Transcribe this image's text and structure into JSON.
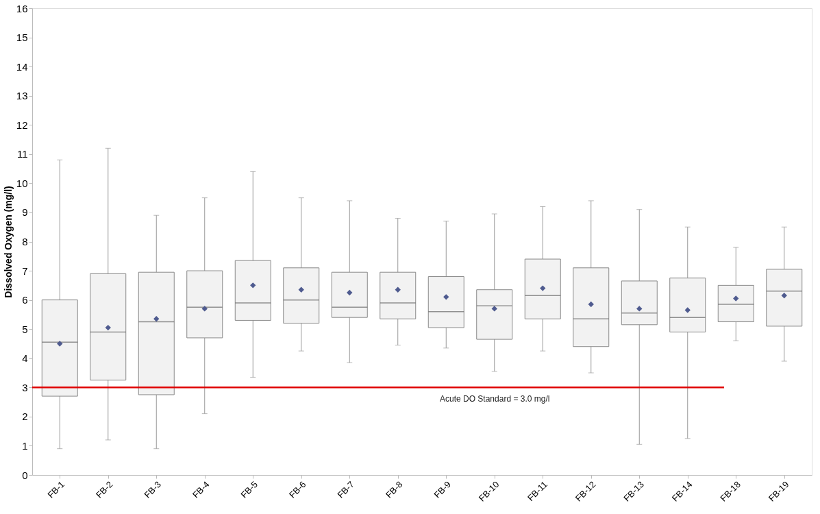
{
  "chart_data": {
    "type": "box",
    "ylabel": "Dissolved Oxygen (mg/l)",
    "categories": [
      "FB-1",
      "FB-2",
      "FB-3",
      "FB-4",
      "FB-5",
      "FB-6",
      "FB-7",
      "FB-8",
      "FB-9",
      "FB-10",
      "FB-11",
      "FB-12",
      "FB-13",
      "FB-14",
      "FB-18",
      "FB-19"
    ],
    "boxes": [
      {
        "low": 0.9,
        "q1": 2.7,
        "median": 4.55,
        "q3": 6.0,
        "high": 10.8,
        "mean": 4.5
      },
      {
        "low": 1.2,
        "q1": 3.25,
        "median": 4.9,
        "q3": 6.9,
        "high": 11.2,
        "mean": 5.05
      },
      {
        "low": 0.9,
        "q1": 2.75,
        "median": 5.25,
        "q3": 6.95,
        "high": 8.9,
        "mean": 5.35
      },
      {
        "low": 2.1,
        "q1": 4.7,
        "median": 5.75,
        "q3": 7.0,
        "high": 9.5,
        "mean": 5.7
      },
      {
        "low": 3.35,
        "q1": 5.3,
        "median": 5.9,
        "q3": 7.35,
        "high": 10.4,
        "mean": 6.5
      },
      {
        "low": 4.25,
        "q1": 5.2,
        "median": 6.0,
        "q3": 7.1,
        "high": 9.5,
        "mean": 6.35
      },
      {
        "low": 3.85,
        "q1": 5.4,
        "median": 5.75,
        "q3": 6.95,
        "high": 9.4,
        "mean": 6.25
      },
      {
        "low": 4.45,
        "q1": 5.35,
        "median": 5.9,
        "q3": 6.95,
        "high": 8.8,
        "mean": 6.35
      },
      {
        "low": 4.35,
        "q1": 5.05,
        "median": 5.6,
        "q3": 6.8,
        "high": 8.7,
        "mean": 6.1
      },
      {
        "low": 3.55,
        "q1": 4.65,
        "median": 5.8,
        "q3": 6.35,
        "high": 8.95,
        "mean": 5.7
      },
      {
        "low": 4.25,
        "q1": 5.35,
        "median": 6.15,
        "q3": 7.4,
        "high": 9.2,
        "mean": 6.4
      },
      {
        "low": 3.5,
        "q1": 4.4,
        "median": 5.35,
        "q3": 7.1,
        "high": 9.4,
        "mean": 5.85
      },
      {
        "low": 1.05,
        "q1": 5.15,
        "median": 5.55,
        "q3": 6.65,
        "high": 9.1,
        "mean": 5.7
      },
      {
        "low": 1.25,
        "q1": 4.9,
        "median": 5.4,
        "q3": 6.75,
        "high": 8.5,
        "mean": 5.65
      },
      {
        "low": 4.6,
        "q1": 5.25,
        "median": 5.85,
        "q3": 6.5,
        "high": 7.8,
        "mean": 6.05
      },
      {
        "low": 3.9,
        "q1": 5.1,
        "median": 6.3,
        "q3": 7.05,
        "high": 8.5,
        "mean": 6.15
      }
    ],
    "color": "#f2f2f2",
    "marker": "diamond",
    "ylim": [
      0,
      16
    ],
    "yticks": [
      0,
      1,
      2,
      3,
      4,
      5,
      6,
      7,
      8,
      9,
      10,
      11,
      12,
      13,
      14,
      15,
      16
    ],
    "grid": false,
    "ref_lines": [
      {
        "axis": "y",
        "value": 3.0,
        "label": "Acute DO Standard = 3.0 mg/l",
        "color": "#e00000"
      }
    ]
  }
}
